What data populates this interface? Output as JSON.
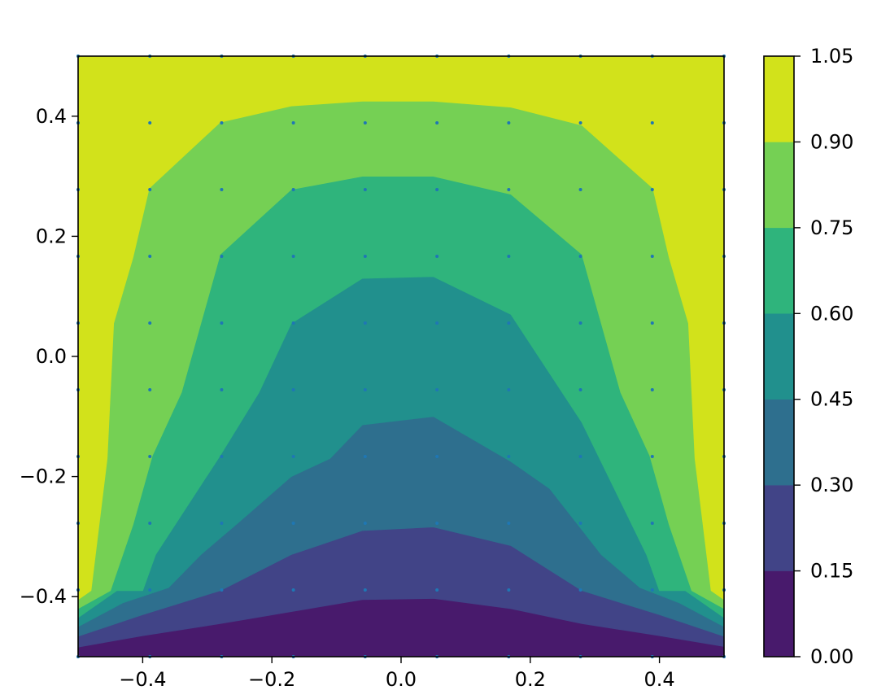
{
  "chart_data": {
    "type": "contourf",
    "title": "",
    "xlabel": "",
    "ylabel": "",
    "xlim": [
      -0.5,
      0.5
    ],
    "ylim": [
      -0.5,
      0.5
    ],
    "x_ticks": [
      -0.4,
      -0.2,
      0.0,
      0.2,
      0.4
    ],
    "x_tick_labels": [
      "−0.4",
      "−0.2",
      "0.0",
      "0.2",
      "0.4"
    ],
    "y_ticks": [
      -0.4,
      -0.2,
      0.0,
      0.2,
      0.4
    ],
    "y_tick_labels": [
      "−0.4",
      "−0.2",
      "0.0",
      "0.2",
      "0.4"
    ],
    "grid": false,
    "colormap": "viridis",
    "levels": [
      0.0,
      0.15,
      0.3,
      0.45,
      0.6,
      0.75,
      0.9,
      1.05
    ],
    "level_labels": [
      "0.00",
      "0.15",
      "0.30",
      "0.45",
      "0.60",
      "0.75",
      "0.90",
      "1.05"
    ],
    "level_colors": [
      "#481a6c",
      "#414487",
      "#2e6f8e",
      "#21908d",
      "#2fb47c",
      "#75d054",
      "#d2e21b"
    ],
    "sample_points_x": [
      -0.5,
      -0.3889,
      -0.2778,
      -0.1667,
      -0.0556,
      0.0556,
      0.1667,
      0.2778,
      0.3889,
      0.5
    ],
    "sample_points_y": [
      -0.5,
      -0.3889,
      -0.2778,
      -0.1667,
      -0.0556,
      0.0556,
      0.1667,
      0.2778,
      0.3889,
      0.5
    ],
    "point_color": "#1f77b4",
    "contours": [
      {
        "level": 0.15,
        "x": [
          -0.5,
          -0.4,
          -0.28,
          -0.17,
          -0.06,
          0.05,
          0.17,
          0.28,
          0.4,
          0.5
        ],
        "y": [
          -0.484,
          -0.465,
          -0.445,
          -0.425,
          -0.405,
          -0.403,
          -0.42,
          -0.445,
          -0.465,
          -0.483
        ]
      },
      {
        "level": 0.3,
        "x": [
          -0.5,
          -0.4,
          -0.28,
          -0.17,
          -0.06,
          0.05,
          0.17,
          0.28,
          0.4,
          0.5
        ],
        "y": [
          -0.466,
          -0.43,
          -0.39,
          -0.33,
          -0.29,
          -0.284,
          -0.315,
          -0.39,
          -0.43,
          -0.466
        ]
      },
      {
        "level": 0.45,
        "x": [
          -0.5,
          -0.43,
          -0.36,
          -0.31,
          -0.25,
          -0.17,
          -0.11,
          -0.06,
          0.05,
          0.17,
          0.23,
          0.31,
          0.37,
          0.43,
          0.5
        ],
        "y": [
          -0.45,
          -0.41,
          -0.385,
          -0.33,
          -0.275,
          -0.2,
          -0.17,
          -0.114,
          -0.1,
          -0.175,
          -0.22,
          -0.33,
          -0.385,
          -0.41,
          -0.45
        ]
      },
      {
        "level": 0.6,
        "x": [
          -0.5,
          -0.44,
          -0.4,
          -0.38,
          -0.28,
          -0.22,
          -0.17,
          -0.06,
          0.05,
          0.17,
          0.28,
          0.33,
          0.38,
          0.4,
          0.44,
          0.5
        ],
        "y": [
          -0.435,
          -0.39,
          -0.39,
          -0.33,
          -0.165,
          -0.06,
          0.055,
          0.13,
          0.133,
          0.07,
          -0.11,
          -0.22,
          -0.33,
          -0.39,
          -0.39,
          -0.435
        ]
      },
      {
        "level": 0.75,
        "x": [
          -0.5,
          -0.45,
          -0.415,
          -0.385,
          -0.34,
          -0.31,
          -0.28,
          -0.17,
          -0.06,
          0.05,
          0.17,
          0.28,
          0.31,
          0.34,
          0.385,
          0.415,
          0.45,
          0.5
        ],
        "y": [
          -0.42,
          -0.39,
          -0.28,
          -0.165,
          -0.06,
          0.055,
          0.17,
          0.278,
          0.3,
          0.3,
          0.27,
          0.17,
          0.055,
          -0.06,
          -0.165,
          -0.28,
          -0.39,
          -0.42
        ]
      },
      {
        "level": 0.9,
        "x": [
          -0.5,
          -0.48,
          -0.455,
          -0.445,
          -0.415,
          -0.39,
          -0.28,
          -0.17,
          -0.06,
          0.05,
          0.17,
          0.28,
          0.39,
          0.415,
          0.445,
          0.455,
          0.48,
          0.5
        ],
        "y": [
          -0.405,
          -0.39,
          -0.17,
          0.055,
          0.165,
          0.28,
          0.39,
          0.417,
          0.425,
          0.425,
          0.415,
          0.385,
          0.28,
          0.165,
          0.055,
          -0.17,
          -0.39,
          -0.405
        ]
      }
    ]
  }
}
